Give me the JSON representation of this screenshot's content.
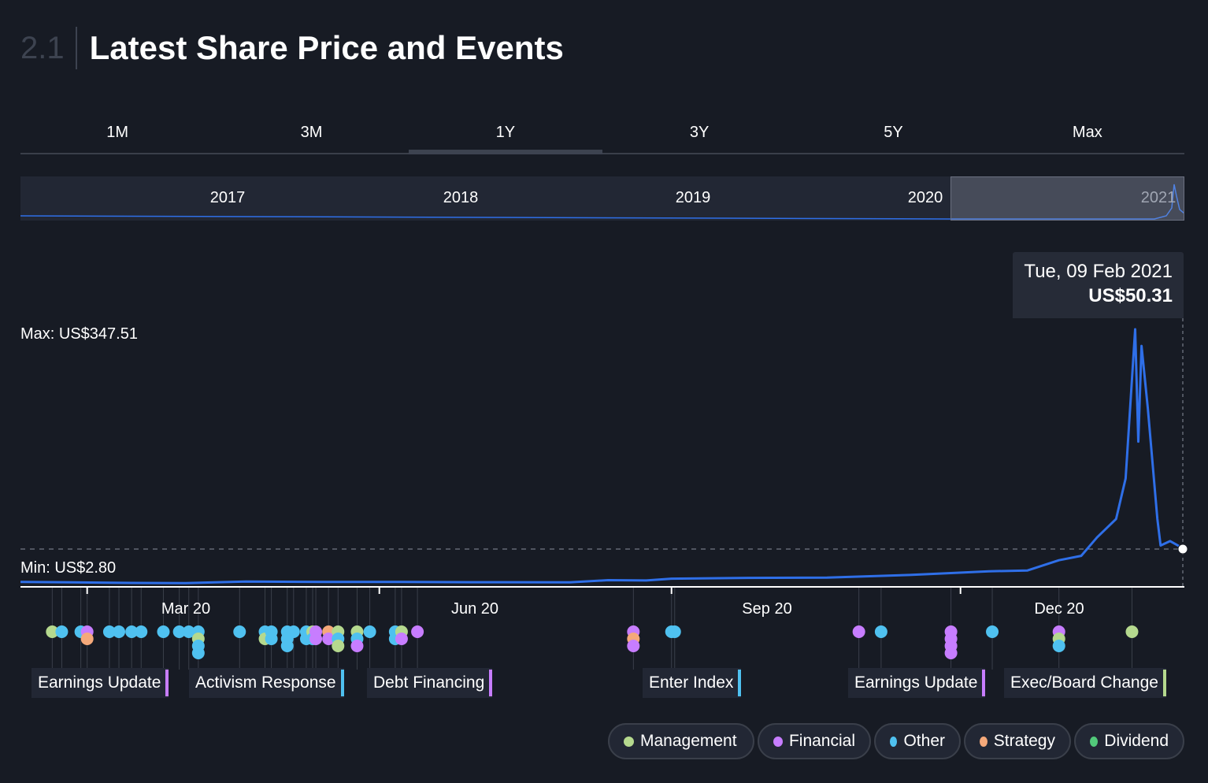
{
  "header": {
    "section_number": "2.1",
    "title": "Latest Share Price and Events"
  },
  "tabs": [
    {
      "label": "1M",
      "active": false
    },
    {
      "label": "3M",
      "active": false
    },
    {
      "label": "1Y",
      "active": true
    },
    {
      "label": "3Y",
      "active": false
    },
    {
      "label": "5Y",
      "active": false
    },
    {
      "label": "Max",
      "active": false
    }
  ],
  "navigator": {
    "years": [
      "2017",
      "2018",
      "2019",
      "2020",
      "2021"
    ]
  },
  "tooltip": {
    "date": "Tue, 09 Feb 2021",
    "value": "US$50.31"
  },
  "labels": {
    "max": "Max: US$347.51",
    "min": "Min: US$2.80"
  },
  "colors": {
    "line": "#2f6fe8",
    "Management": "#b5d98e",
    "Financial": "#c77dff",
    "Other": "#4fc1f0",
    "Strategy": "#f5a97a",
    "Dividend": "#52c97a"
  },
  "chart_data": {
    "type": "line",
    "x_axis": {
      "start": "2020-02-09",
      "end": "2021-02-09",
      "tick_labels": [
        "Mar 20",
        "Jun 20",
        "Sep 20",
        "Dec 20"
      ],
      "tick_dates": [
        "2020-03-01",
        "2020-06-01",
        "2020-09-01",
        "2020-12-01"
      ]
    },
    "y_range": [
      0,
      347.51
    ],
    "max": 347.51,
    "min": 2.8,
    "last_value": 50.31,
    "series": [
      {
        "name": "Share Price",
        "points": [
          [
            "2020-02-09",
            4.5
          ],
          [
            "2020-02-25",
            4.0
          ],
          [
            "2020-03-15",
            3.2
          ],
          [
            "2020-04-01",
            3.0
          ],
          [
            "2020-04-20",
            5.0
          ],
          [
            "2020-05-15",
            4.5
          ],
          [
            "2020-06-01",
            4.6
          ],
          [
            "2020-06-30",
            4.2
          ],
          [
            "2020-07-31",
            4.0
          ],
          [
            "2020-08-12",
            7.0
          ],
          [
            "2020-08-24",
            6.5
          ],
          [
            "2020-09-01",
            9.0
          ],
          [
            "2020-09-25",
            10.0
          ],
          [
            "2020-10-20",
            10.5
          ],
          [
            "2020-11-15",
            14.0
          ],
          [
            "2020-11-30",
            17.0
          ],
          [
            "2020-12-10",
            19.0
          ],
          [
            "2020-12-22",
            20.0
          ],
          [
            "2021-01-01",
            34.0
          ],
          [
            "2021-01-08",
            40.0
          ],
          [
            "2021-01-13",
            65.0
          ],
          [
            "2021-01-19",
            90.0
          ],
          [
            "2021-01-22",
            145.0
          ],
          [
            "2021-01-25",
            347.51
          ],
          [
            "2021-01-26",
            195.0
          ],
          [
            "2021-01-27",
            325.0
          ],
          [
            "2021-01-29",
            240.0
          ],
          [
            "2021-02-01",
            90.0
          ],
          [
            "2021-02-02",
            54.0
          ],
          [
            "2021-02-05",
            60.0
          ],
          [
            "2021-02-09",
            50.31
          ]
        ]
      }
    ]
  },
  "events": [
    {
      "date": "2020-02-19",
      "types": [
        "Management"
      ]
    },
    {
      "date": "2020-02-22",
      "types": [
        "Other"
      ]
    },
    {
      "date": "2020-02-28",
      "types": [
        "Other"
      ]
    },
    {
      "date": "2020-03-01",
      "types": [
        "Financial",
        "Strategy"
      ]
    },
    {
      "date": "2020-03-08",
      "types": [
        "Other"
      ]
    },
    {
      "date": "2020-03-11",
      "types": [
        "Other"
      ]
    },
    {
      "date": "2020-03-15",
      "types": [
        "Other"
      ]
    },
    {
      "date": "2020-03-18",
      "types": [
        "Other"
      ]
    },
    {
      "date": "2020-03-25",
      "types": [
        "Other"
      ]
    },
    {
      "date": "2020-03-30",
      "types": [
        "Other"
      ]
    },
    {
      "date": "2020-04-02",
      "types": [
        "Other"
      ]
    },
    {
      "date": "2020-04-05",
      "types": [
        "Other",
        "Management",
        "Other",
        "Other"
      ]
    },
    {
      "date": "2020-04-18",
      "types": [
        "Other"
      ]
    },
    {
      "date": "2020-04-26",
      "types": [
        "Other",
        "Management"
      ]
    },
    {
      "date": "2020-04-28",
      "types": [
        "Other",
        "Other"
      ]
    },
    {
      "date": "2020-05-03",
      "types": [
        "Other",
        "Other",
        "Other"
      ]
    },
    {
      "date": "2020-05-05",
      "types": [
        "Other"
      ]
    },
    {
      "date": "2020-05-09",
      "types": [
        "Other",
        "Other"
      ]
    },
    {
      "date": "2020-05-11",
      "types": [
        "Management",
        "Other"
      ]
    },
    {
      "date": "2020-05-12",
      "types": [
        "Financial",
        "Financial"
      ]
    },
    {
      "date": "2020-05-16",
      "types": [
        "Strategy",
        "Financial"
      ]
    },
    {
      "date": "2020-05-19",
      "types": [
        "Management",
        "Other",
        "Management"
      ]
    },
    {
      "date": "2020-05-25",
      "types": [
        "Management",
        "Other",
        "Financial"
      ]
    },
    {
      "date": "2020-05-29",
      "types": [
        "Other"
      ]
    },
    {
      "date": "2020-06-06",
      "types": [
        "Other",
        "Other"
      ]
    },
    {
      "date": "2020-06-08",
      "types": [
        "Management",
        "Financial"
      ]
    },
    {
      "date": "2020-06-13",
      "types": [
        "Financial"
      ]
    },
    {
      "date": "2020-08-20",
      "types": [
        "Financial",
        "Strategy",
        "Financial"
      ]
    },
    {
      "date": "2020-09-01",
      "types": [
        "Other"
      ]
    },
    {
      "date": "2020-09-02",
      "types": [
        "Other"
      ]
    },
    {
      "date": "2020-10-30",
      "types": [
        "Financial"
      ]
    },
    {
      "date": "2020-11-06",
      "types": [
        "Other"
      ]
    },
    {
      "date": "2020-11-28",
      "types": [
        "Financial",
        "Financial",
        "Financial",
        "Financial"
      ]
    },
    {
      "date": "2020-12-11",
      "types": [
        "Other"
      ]
    },
    {
      "date": "2021-01-01",
      "types": [
        "Financial",
        "Management",
        "Other"
      ]
    },
    {
      "date": "2021-01-24",
      "types": [
        "Management"
      ]
    }
  ],
  "event_labels": [
    {
      "text": "Earnings Update",
      "type": "Financial"
    },
    {
      "text": "Activism Response",
      "type": "Other"
    },
    {
      "text": "Debt Financing",
      "type": "Financial"
    },
    {
      "text": "Enter Index",
      "type": "Other"
    },
    {
      "text": "Earnings Update",
      "type": "Financial"
    },
    {
      "text": "Exec/Board Change",
      "type": "Management"
    }
  ],
  "legend": [
    {
      "label": "Management",
      "type": "Management"
    },
    {
      "label": "Financial",
      "type": "Financial"
    },
    {
      "label": "Other",
      "type": "Other"
    },
    {
      "label": "Strategy",
      "type": "Strategy"
    },
    {
      "label": "Dividend",
      "type": "Dividend"
    }
  ]
}
